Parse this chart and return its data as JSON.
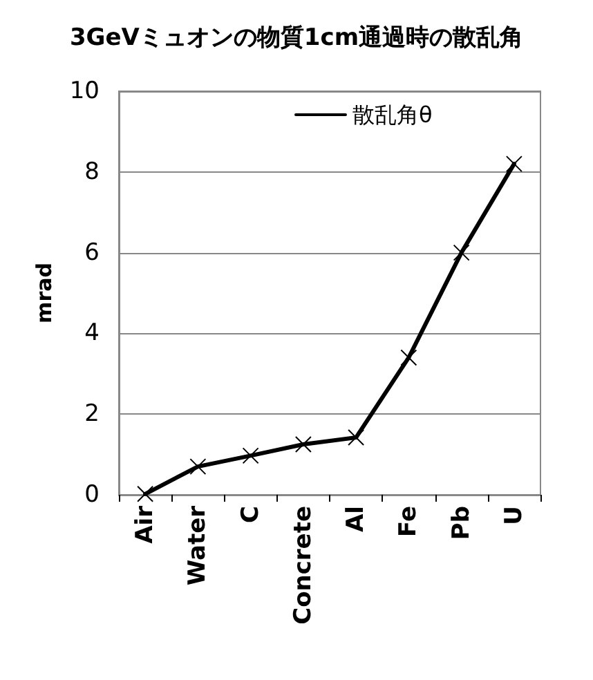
{
  "chart_data": {
    "type": "line",
    "title": "3GeVミュオンの物質1cm通過時の散乱角",
    "ylabel": "mrad",
    "categories": [
      "Air",
      "Water",
      "C",
      "Concrete",
      "Al",
      "Fe",
      "Pb",
      "U"
    ],
    "series": [
      {
        "name": "散乱角θ",
        "color": "#000000",
        "values": [
          0.02,
          0.7,
          0.97,
          1.25,
          1.42,
          3.4,
          6.0,
          8.2
        ]
      }
    ],
    "ylim": [
      0,
      10
    ],
    "yticks": [
      0,
      2,
      4,
      6,
      8,
      10
    ],
    "grid": "y",
    "legend": "top",
    "marker": "cross",
    "line_style": "solid"
  }
}
